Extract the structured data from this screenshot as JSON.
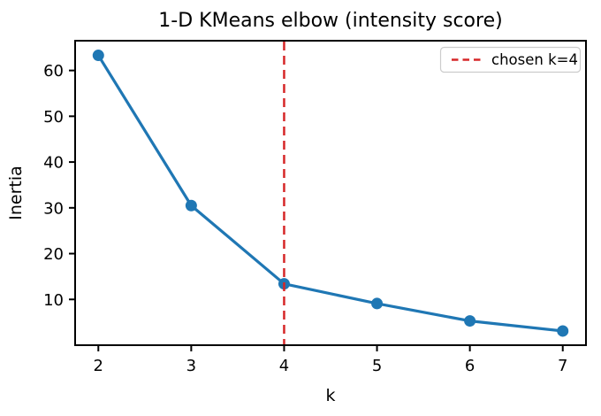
{
  "figure": {
    "background": "#ffffff"
  },
  "chart_data": {
    "type": "line",
    "title": "1-D KMeans elbow (intensity score)",
    "xlabel": "k",
    "ylabel": "Inertia",
    "x": [
      2,
      3,
      4,
      5,
      6,
      7
    ],
    "series": [
      {
        "name": "inertia",
        "color": "#1f77b4",
        "marker": "circle",
        "linestyle": "solid",
        "values": [
          63.3,
          30.5,
          13.4,
          9.1,
          5.3,
          3.1
        ]
      }
    ],
    "xticks": [
      "2",
      "3",
      "4",
      "5",
      "6",
      "7"
    ],
    "xtick_values": [
      2,
      3,
      4,
      5,
      6,
      7
    ],
    "yticks": [
      "10",
      "20",
      "30",
      "40",
      "50",
      "60"
    ],
    "ytick_values": [
      10,
      20,
      30,
      40,
      50,
      60
    ],
    "xlim": [
      1.75,
      7.25
    ],
    "ylim": [
      0,
      66.5
    ],
    "grid": false,
    "annotations": [
      {
        "type": "vline",
        "x": 4,
        "color": "#d62728",
        "linestyle": "dashed",
        "label": "chosen k=4"
      }
    ],
    "legend": {
      "position": "upper right",
      "entries": [
        {
          "label": "chosen k=4",
          "color": "#d62728",
          "linestyle": "dashed"
        }
      ]
    }
  },
  "colors": {
    "series_blue": "#1f77b4",
    "chosen_red": "#d62728",
    "spine": "#000000",
    "legend_border": "#cccccc",
    "background": "#ffffff"
  }
}
